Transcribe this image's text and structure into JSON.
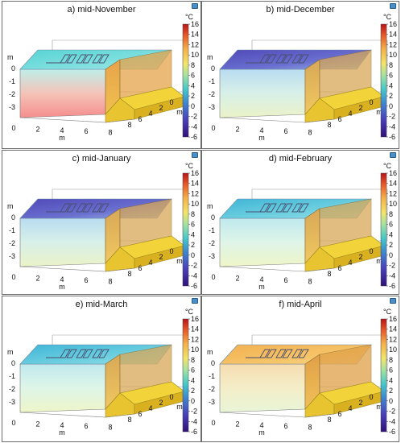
{
  "panels": [
    {
      "id": "a",
      "title": "a) mid-November",
      "style": "warm_bottom"
    },
    {
      "id": "b",
      "title": "b) mid-December",
      "style": "cold_top"
    },
    {
      "id": "c",
      "title": "c) mid-January",
      "style": "cold_top"
    },
    {
      "id": "d",
      "title": "d) mid-February",
      "style": "cool"
    },
    {
      "id": "e",
      "title": "e) mid-March",
      "style": "cool"
    },
    {
      "id": "f",
      "title": "f) mid-April",
      "style": "warm_top"
    }
  ],
  "colorbar": {
    "unit": "°C",
    "ticks": [
      "16",
      "14",
      "12",
      "10",
      "8",
      "6",
      "4",
      "2",
      "0",
      "-2",
      "-4",
      "-6"
    ],
    "min": -6,
    "max": 16
  },
  "axes": {
    "z_label": "m",
    "z_ticks": [
      "0",
      "-1",
      "-2",
      "-3"
    ],
    "x_label": "m",
    "x_ticks": [
      "0",
      "2",
      "4",
      "6",
      "8"
    ],
    "y_label": "m",
    "y_ticks": [
      "0",
      "2",
      "4",
      "6",
      "8"
    ]
  },
  "colors": {
    "frame": "#6b6b6b",
    "pipe": "#4a4e6e",
    "step_yellow": "#f2d43a",
    "wall_orange": "#e0a040"
  }
}
